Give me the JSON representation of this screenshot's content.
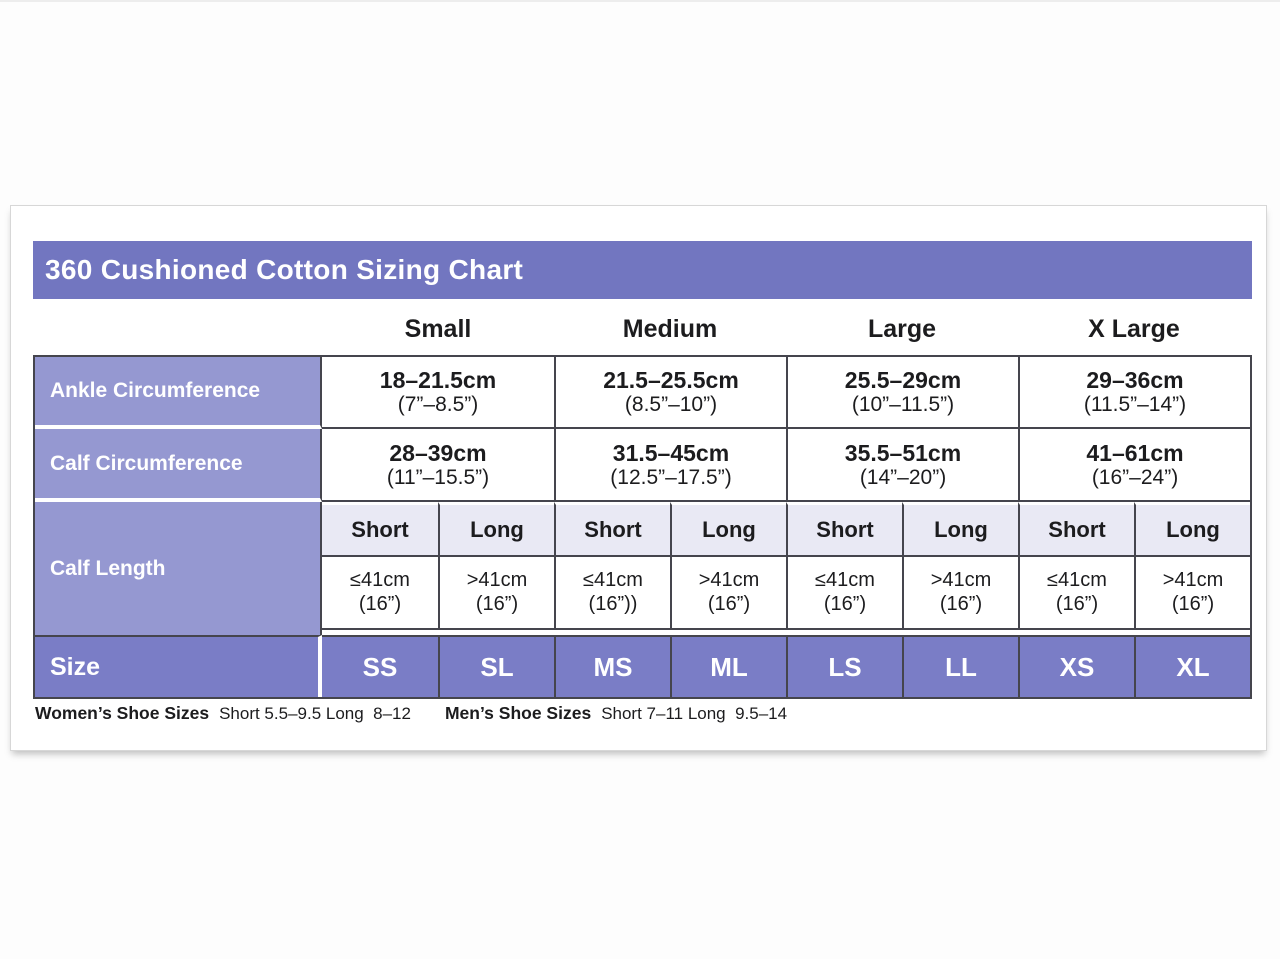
{
  "title": "360 Cushioned Cotton Sizing Chart",
  "size_headers": [
    "Small",
    "Medium",
    "Large",
    "X Large"
  ],
  "rows": [
    {
      "label": "Ankle Circumference",
      "cells": [
        {
          "cm": "18–21.5cm",
          "inches": "(7”–8.5”)"
        },
        {
          "cm": "21.5–25.5cm",
          "inches": "(8.5”–10”)"
        },
        {
          "cm": "25.5–29cm",
          "inches": "(10”–11.5”)"
        },
        {
          "cm": "29–36cm",
          "inches": "(11.5”–14”)"
        }
      ]
    },
    {
      "label": "Calf Circumference",
      "cells": [
        {
          "cm": "28–39cm",
          "inches": "(11”–15.5”)"
        },
        {
          "cm": "31.5–45cm",
          "inches": "(12.5”–17.5”)"
        },
        {
          "cm": "35.5–51cm",
          "inches": "(14”–20”)"
        },
        {
          "cm": "41–61cm",
          "inches": "(16”–24”)"
        }
      ]
    }
  ],
  "calf_length": {
    "label": "Calf Length",
    "headers": [
      "Short",
      "Long",
      "Short",
      "Long",
      "Short",
      "Long",
      "Short",
      "Long"
    ],
    "cells": [
      {
        "value": "≤41cm",
        "inches": "(16”)"
      },
      {
        "value": ">41cm",
        "inches": "(16”)"
      },
      {
        "value": "≤41cm",
        "inches": "(16”))"
      },
      {
        "value": ">41cm",
        "inches": "(16”)"
      },
      {
        "value": "≤41cm",
        "inches": "(16”)"
      },
      {
        "value": ">41cm",
        "inches": "(16”)"
      },
      {
        "value": "≤41cm",
        "inches": "(16”)"
      },
      {
        "value": ">41cm",
        "inches": "(16”)"
      }
    ]
  },
  "size_row": {
    "label": "Size",
    "codes": [
      "SS",
      "SL",
      "MS",
      "ML",
      "LS",
      "LL",
      "XS",
      "XL"
    ]
  },
  "footnotes": {
    "womens_label": "Women’s Shoe Sizes",
    "womens_value": "Short 5.5–9.5 Long  8–12",
    "mens_label": "Men’s Shoe Sizes",
    "mens_value": "Short 7–11 Long  9.5–14"
  },
  "colors": {
    "title_bar": "#7276C0",
    "row_label": "#9598D1",
    "size_row": "#7A7DC6",
    "length_header": "#E9E9F4",
    "border": "#45454d",
    "text": "#1c1c1e"
  },
  "chart_data": {
    "type": "table",
    "title": "360 Cushioned Cotton Sizing Chart",
    "columns": [
      "",
      "Small",
      "Medium",
      "Large",
      "X Large"
    ],
    "rows": [
      [
        "Ankle Circumference",
        "18–21.5cm (7”–8.5”)",
        "21.5–25.5cm (8.5”–10”)",
        "25.5–29cm (10”–11.5”)",
        "29–36cm (11.5”–14”)"
      ],
      [
        "Calf Circumference",
        "28–39cm (11”–15.5”)",
        "31.5–45cm (12.5”–17.5”)",
        "35.5–51cm (14”–20”)",
        "41–61cm (16”–24”)"
      ],
      [
        "Calf Length Short",
        "≤41cm (16”)",
        "≤41cm (16”))",
        "≤41cm (16”)",
        "≤41cm (16”)"
      ],
      [
        "Calf Length Long",
        ">41cm (16”)",
        ">41cm (16”)",
        ">41cm (16”)",
        ">41cm (16”)"
      ],
      [
        "Size Short",
        "SS",
        "MS",
        "LS",
        "XS"
      ],
      [
        "Size Long",
        "SL",
        "ML",
        "LL",
        "XL"
      ]
    ],
    "footnotes": [
      "Women’s Shoe Sizes Short 5.5–9.5 Long 8–12",
      "Men’s Shoe Sizes Short 7–11 Long 9.5–14"
    ]
  }
}
